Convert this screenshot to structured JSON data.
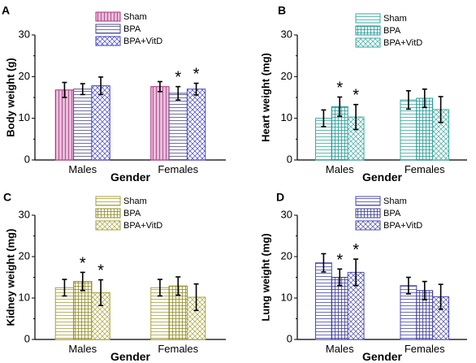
{
  "chart_data": [
    {
      "type": "bar",
      "panel_label": "A",
      "categories": [
        "Males",
        "Females"
      ],
      "xlabel": "Gender",
      "ylabel": "Body weight (g)",
      "ylim": [
        0,
        30
      ],
      "yticks": [
        "0",
        "10",
        "20",
        "30"
      ],
      "legend_position": "top-left",
      "series": [
        {
          "name": "Sham",
          "values": [
            16.8,
            17.6
          ],
          "errors": [
            1.8,
            1.2
          ],
          "color": "#b0307a",
          "fill": "#e6bfdc",
          "pattern": "vertical",
          "sig": [
            false,
            false
          ]
        },
        {
          "name": "BPA",
          "values": [
            17.0,
            16.0
          ],
          "errors": [
            1.3,
            1.6
          ],
          "color": "#4b4b8c",
          "fill": "#ffffff",
          "pattern": "horizontal",
          "sig": [
            false,
            true
          ]
        },
        {
          "name": "BPA+VitD",
          "values": [
            17.8,
            17.0
          ],
          "errors": [
            2.1,
            1.4
          ],
          "color": "#4040d0",
          "fill": "#ffffff",
          "pattern": "cross",
          "sig": [
            false,
            true
          ]
        }
      ]
    },
    {
      "type": "bar",
      "panel_label": "B",
      "categories": [
        "Males",
        "Females"
      ],
      "xlabel": "Gender",
      "ylabel": "Heart weight (mg)",
      "ylim": [
        0,
        30
      ],
      "yticks": [
        "0",
        "10",
        "20",
        "30"
      ],
      "legend_position": "top-right",
      "series": [
        {
          "name": "Sham",
          "values": [
            10.0,
            14.4
          ],
          "errors": [
            2.0,
            2.2
          ],
          "color": "#3aa9a0",
          "fill": "#ffffff",
          "pattern": "horizontal",
          "sig": [
            false,
            false
          ]
        },
        {
          "name": "BPA",
          "values": [
            12.8,
            14.8
          ],
          "errors": [
            2.3,
            2.2
          ],
          "color": "#1e9a96",
          "fill": "#ffffff",
          "pattern": "grid",
          "sig": [
            true,
            false
          ]
        },
        {
          "name": "BPA+VitD",
          "values": [
            10.3,
            12.1
          ],
          "errors": [
            3.0,
            3.1
          ],
          "color": "#3aa9a0",
          "fill": "#ffffff",
          "pattern": "cross",
          "sig": [
            true,
            false
          ]
        }
      ]
    },
    {
      "type": "bar",
      "panel_label": "C",
      "categories": [
        "Males",
        "Females"
      ],
      "xlabel": "Gender",
      "ylabel": "Kidney weight (mg)",
      "ylim": [
        0,
        30
      ],
      "yticks": [
        "0",
        "10",
        "20",
        "30"
      ],
      "legend_position": "top-right",
      "series": [
        {
          "name": "Sham",
          "values": [
            12.5,
            12.5
          ],
          "errors": [
            2.0,
            2.0
          ],
          "color": "#a8a23a",
          "fill": "#ffffff",
          "pattern": "horizontal",
          "sig": [
            false,
            false
          ]
        },
        {
          "name": "BPA",
          "values": [
            14.0,
            12.9
          ],
          "errors": [
            2.2,
            2.2
          ],
          "color": "#8f8a20",
          "fill": "#ffffff",
          "pattern": "grid",
          "sig": [
            true,
            false
          ]
        },
        {
          "name": "BPA+VitD",
          "values": [
            11.3,
            10.2
          ],
          "errors": [
            3.1,
            3.2
          ],
          "color": "#a8a23a",
          "fill": "#ffffff",
          "pattern": "cross",
          "sig": [
            true,
            false
          ]
        }
      ]
    },
    {
      "type": "bar",
      "panel_label": "D",
      "categories": [
        "Males",
        "Females"
      ],
      "xlabel": "Gender",
      "ylabel": "Lung weight (mg)",
      "ylim": [
        0,
        30
      ],
      "yticks": [
        "0",
        "10",
        "20",
        "30"
      ],
      "legend_position": "top-right",
      "series": [
        {
          "name": "Sham",
          "values": [
            18.5,
            13.0
          ],
          "errors": [
            2.2,
            2.0
          ],
          "color": "#4a4ab0",
          "fill": "#ffffff",
          "pattern": "horizontal",
          "sig": [
            false,
            false
          ]
        },
        {
          "name": "BPA",
          "values": [
            15.0,
            11.8
          ],
          "errors": [
            2.0,
            2.2
          ],
          "color": "#3a3a9a",
          "fill": "#ffffff",
          "pattern": "grid",
          "sig": [
            true,
            false
          ]
        },
        {
          "name": "BPA+VitD",
          "values": [
            16.2,
            10.3
          ],
          "errors": [
            3.2,
            3.0
          ],
          "color": "#4a4ab0",
          "fill": "#ffffff",
          "pattern": "cross",
          "sig": [
            true,
            false
          ]
        }
      ]
    }
  ]
}
